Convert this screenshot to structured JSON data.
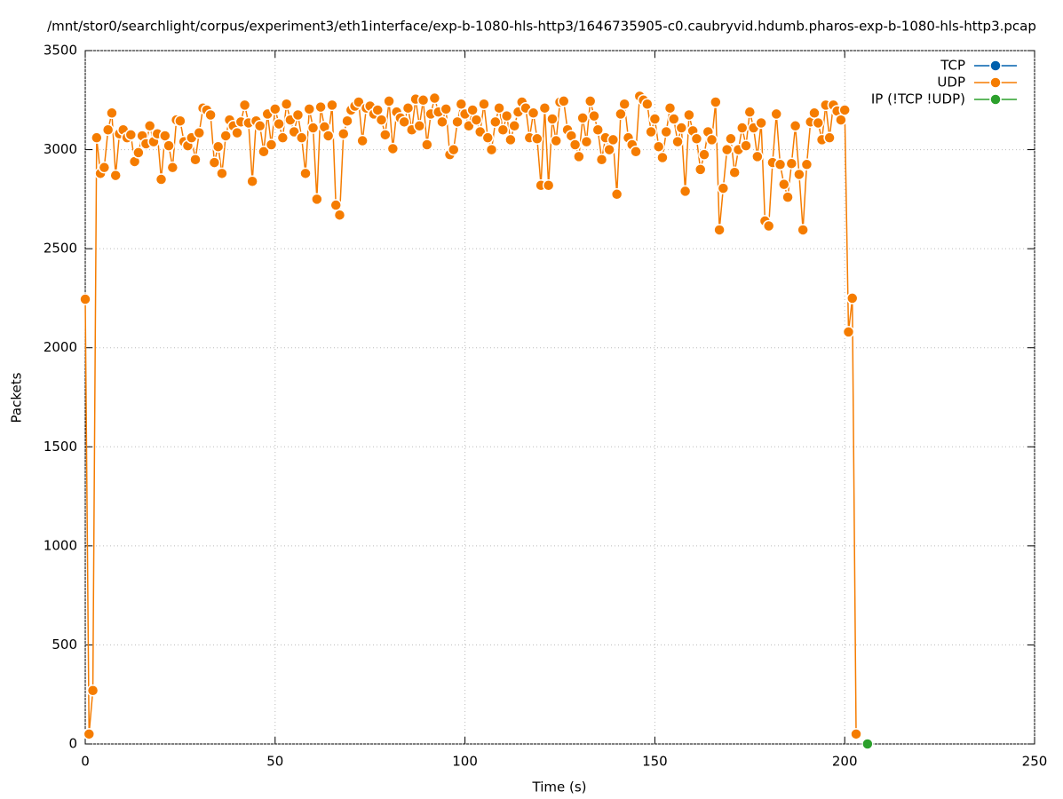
{
  "chart_data": {
    "type": "line",
    "title": "/mnt/stor0/searchlight/corpus/experiment3/eth1interface/exp-b-1080-hls-http3/1646735905-c0.caubryvid.hdumb.pharos-exp-b-1080-hls-http3.pcap",
    "x_label": "Time (s)",
    "y_label": "Packets",
    "xlim": [
      0,
      250
    ],
    "xticks": [
      0,
      50,
      100,
      150,
      200,
      250
    ],
    "ylim": [
      0,
      3500
    ],
    "yticks": [
      0,
      500,
      1000,
      1500,
      2000,
      2500,
      3000,
      3500
    ],
    "grid": true,
    "legend": "top-right",
    "series": [
      {
        "name": "TCP",
        "color": "#0060ad",
        "x": [],
        "values": []
      },
      {
        "name": "UDP",
        "color": "#f57c00",
        "x": [
          0,
          1,
          2,
          3,
          4,
          5,
          6,
          7,
          8,
          9,
          10,
          11,
          12,
          13,
          14,
          15,
          16,
          17,
          18,
          19,
          20,
          21,
          22,
          23,
          24,
          25,
          26,
          27,
          28,
          29,
          30,
          31,
          32,
          33,
          34,
          35,
          36,
          37,
          38,
          39,
          40,
          41,
          42,
          43,
          44,
          45,
          46,
          47,
          48,
          49,
          50,
          51,
          52,
          53,
          54,
          55,
          56,
          57,
          58,
          59,
          60,
          61,
          62,
          63,
          64,
          65,
          66,
          67,
          68,
          69,
          70,
          71,
          72,
          73,
          74,
          75,
          76,
          77,
          78,
          79,
          80,
          81,
          82,
          83,
          84,
          85,
          86,
          87,
          88,
          89,
          90,
          91,
          92,
          93,
          94,
          95,
          96,
          97,
          98,
          99,
          100,
          101,
          102,
          103,
          104,
          105,
          106,
          107,
          108,
          109,
          110,
          111,
          112,
          113,
          114,
          115,
          116,
          117,
          118,
          119,
          120,
          121,
          122,
          123,
          124,
          125,
          126,
          127,
          128,
          129,
          130,
          131,
          132,
          133,
          134,
          135,
          136,
          137,
          138,
          139,
          140,
          141,
          142,
          143,
          144,
          145,
          146,
          147,
          148,
          149,
          150,
          151,
          152,
          153,
          154,
          155,
          156,
          157,
          158,
          159,
          160,
          161,
          162,
          163,
          164,
          165,
          166,
          167,
          168,
          169,
          170,
          171,
          172,
          173,
          174,
          175,
          176,
          177,
          178,
          179,
          180,
          181,
          182,
          183,
          184,
          185,
          186,
          187,
          188,
          189,
          190,
          191,
          192,
          193,
          194,
          195,
          196,
          197,
          198,
          199,
          200,
          201,
          202,
          203
        ],
        "values": [
          2245,
          50,
          270,
          3060,
          2880,
          2910,
          3100,
          3185,
          2870,
          3080,
          3100,
          3060,
          3075,
          2940,
          2985,
          3070,
          3030,
          3120,
          3040,
          3080,
          2850,
          3070,
          3020,
          2910,
          3150,
          3145,
          3040,
          3020,
          3060,
          2950,
          3085,
          3210,
          3200,
          3175,
          2935,
          3015,
          2880,
          3070,
          3150,
          3120,
          3085,
          3140,
          3225,
          3135,
          2840,
          3145,
          3120,
          2990,
          3180,
          3025,
          3205,
          3130,
          3060,
          3230,
          3150,
          3090,
          3175,
          3060,
          2880,
          3205,
          3110,
          2750,
          3215,
          3115,
          3070,
          3225,
          2720,
          2670,
          3080,
          3145,
          3200,
          3220,
          3240,
          3045,
          3210,
          3220,
          3180,
          3200,
          3150,
          3075,
          3245,
          3005,
          3190,
          3160,
          3140,
          3210,
          3100,
          3255,
          3120,
          3250,
          3025,
          3180,
          3260,
          3190,
          3140,
          3205,
          2975,
          3000,
          3140,
          3230,
          3180,
          3120,
          3200,
          3150,
          3090,
          3230,
          3060,
          3000,
          3140,
          3210,
          3100,
          3170,
          3050,
          3120,
          3190,
          3240,
          3210,
          3060,
          3185,
          3055,
          2820,
          3210,
          2820,
          3155,
          3045,
          3240,
          3245,
          3100,
          3070,
          3025,
          2965,
          3160,
          3040,
          3245,
          3170,
          3100,
          2950,
          3060,
          3000,
          3050,
          2775,
          3180,
          3230,
          3060,
          3025,
          2990,
          3270,
          3250,
          3230,
          3090,
          3155,
          3015,
          2960,
          3090,
          3210,
          3155,
          3040,
          3110,
          2790,
          3175,
          3095,
          3055,
          2900,
          2975,
          3090,
          3050,
          3240,
          2595,
          2805,
          3000,
          3055,
          2885,
          3000,
          3110,
          3020,
          3190,
          3110,
          2965,
          3135,
          2640,
          2615,
          2935,
          3180,
          2925,
          2825,
          2760,
          2930,
          3120,
          2875,
          2595,
          2925,
          3140,
          3185,
          3135,
          3050,
          3225,
          3060,
          3225,
          3195,
          3150,
          3200,
          2080,
          2250,
          50
        ]
      },
      {
        "name": "IP (!TCP  !UDP)",
        "color": "#2ca02c",
        "x": [
          206
        ],
        "values": [
          0
        ]
      }
    ]
  }
}
